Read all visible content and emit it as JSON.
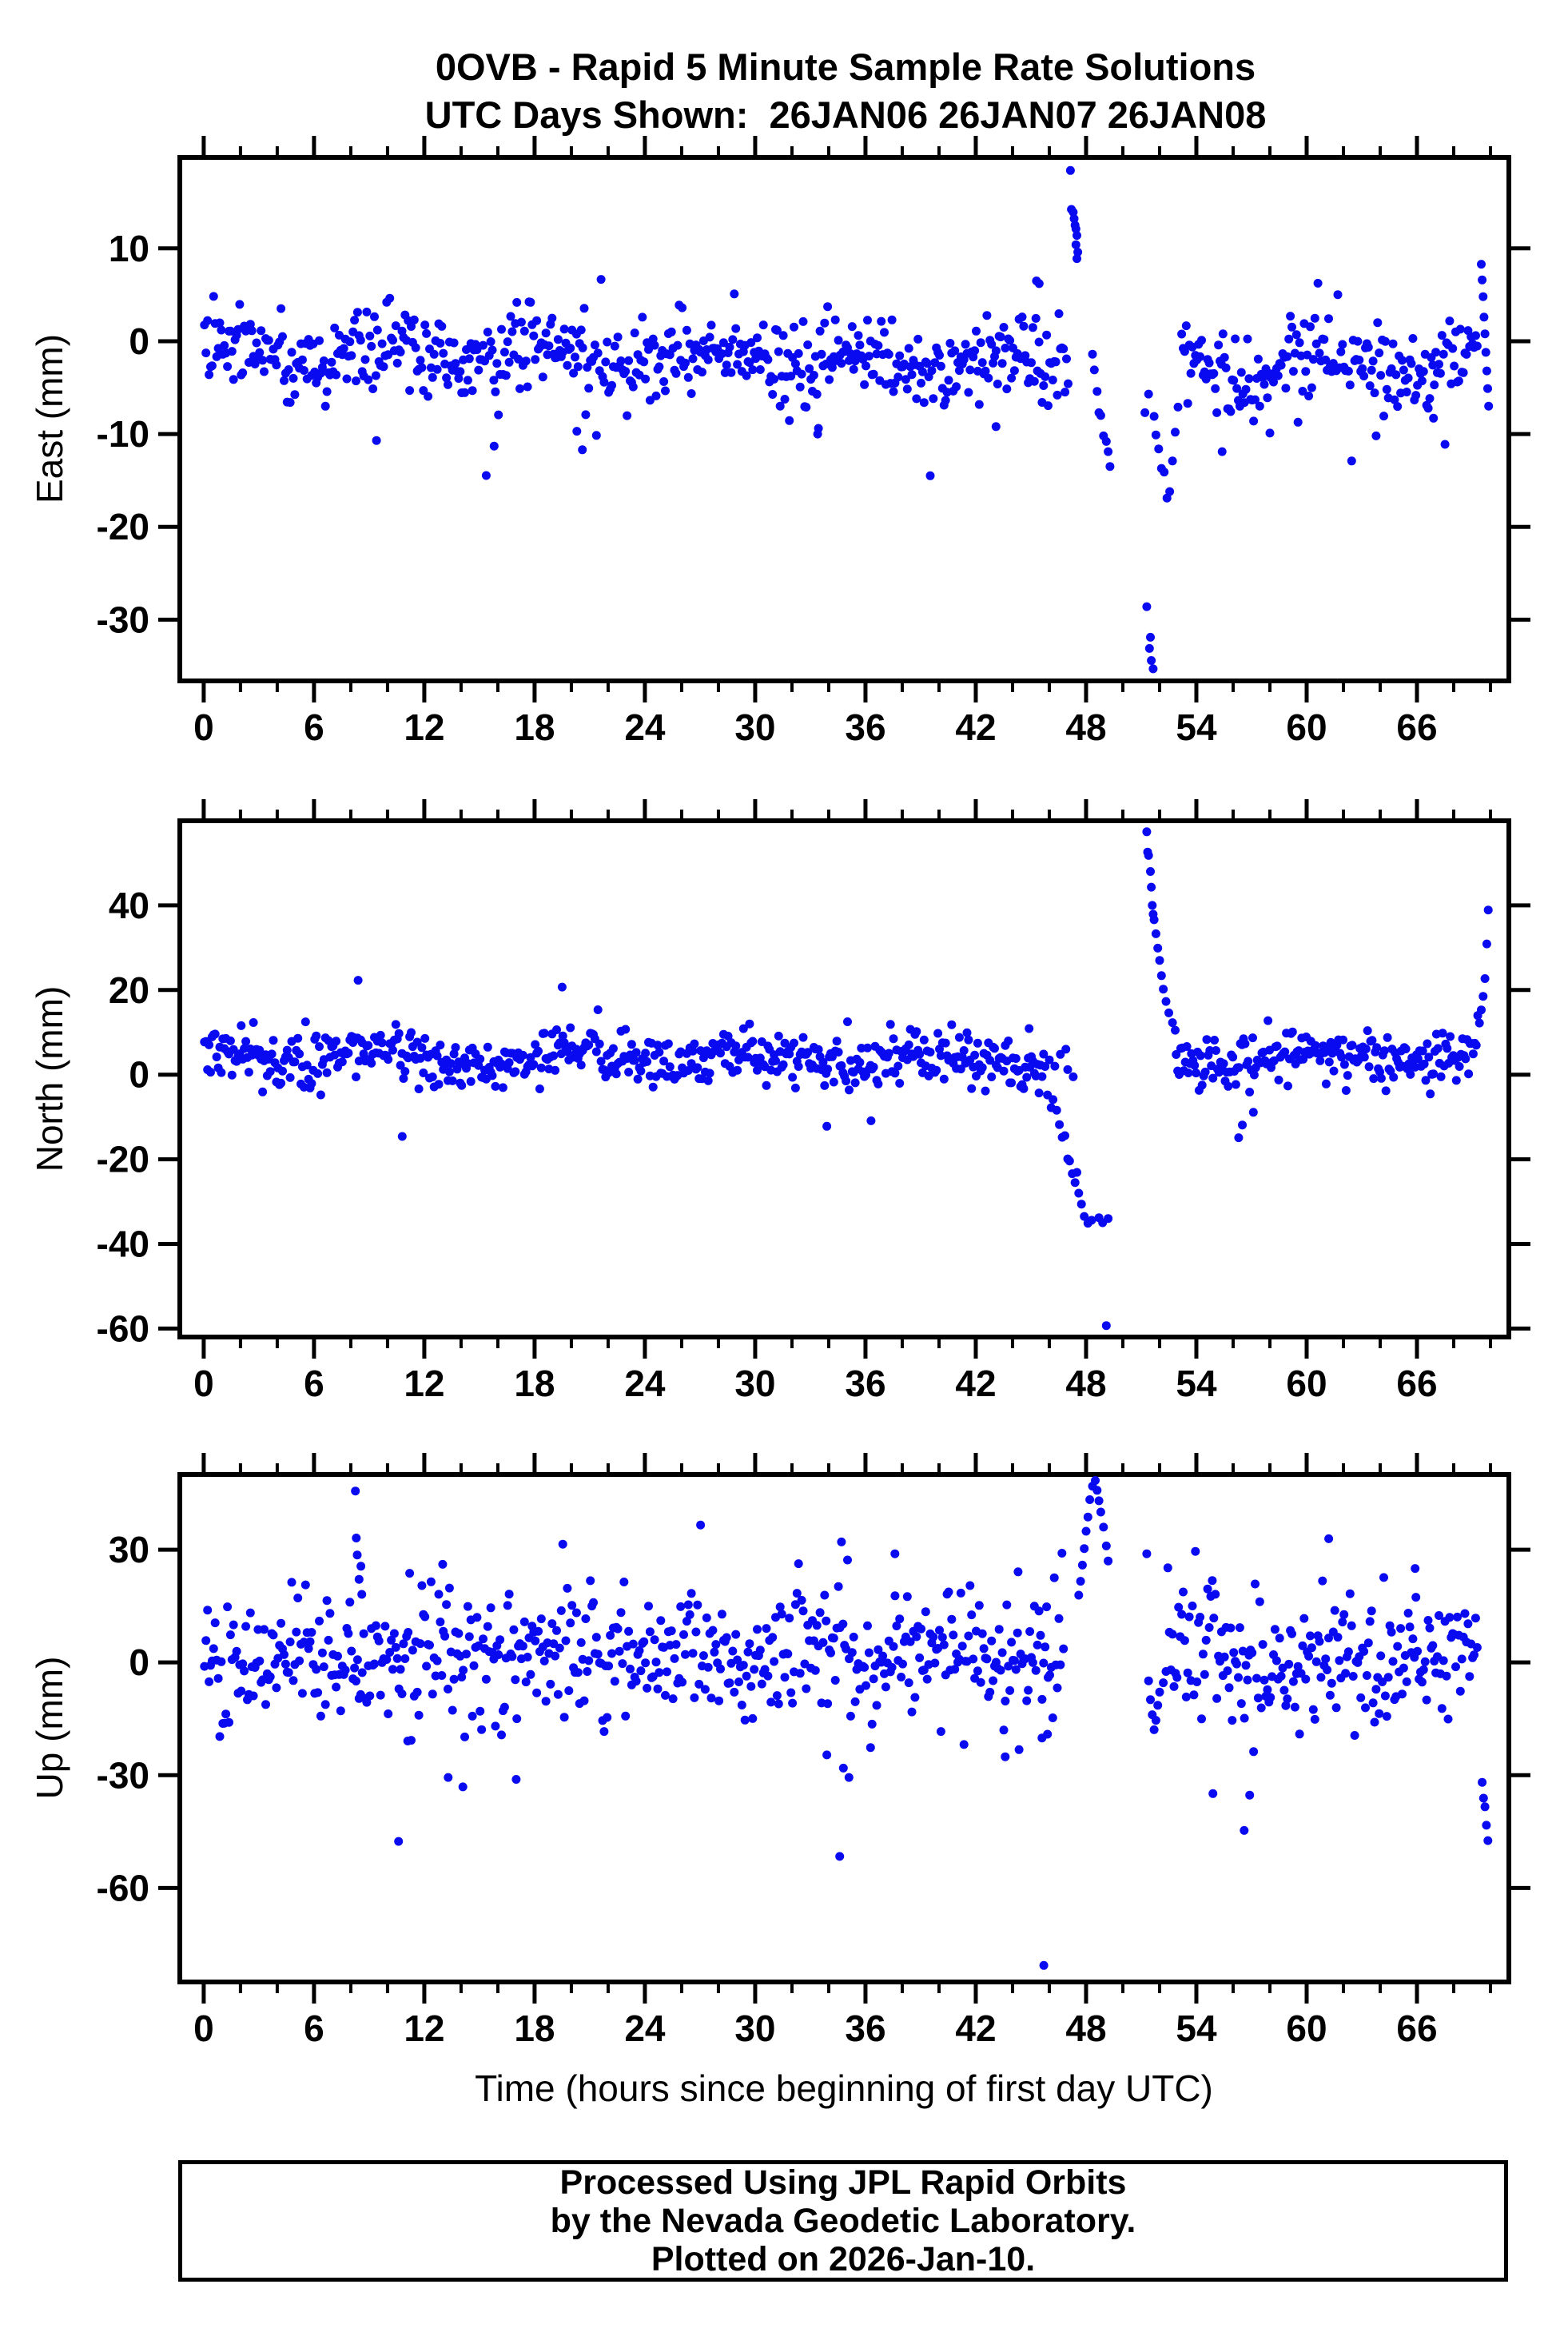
{
  "title": {
    "line1": "0OVB - Rapid 5 Minute Sample Rate Solutions",
    "line2": "UTC Days Shown:  26JAN06 26JAN07 26JAN08"
  },
  "figure": {
    "background": "#ffffff",
    "frame_color": "#000000",
    "marker_color": "#0A0AF0",
    "marker_radius": 5.5,
    "tick_label_color": "#000000"
  },
  "axes": {
    "xlabel": "Time (hours since beginning of first day UTC)",
    "xlim": [
      -1.3,
      71.0
    ],
    "xticks": [
      0,
      6,
      12,
      18,
      24,
      30,
      36,
      42,
      48,
      54,
      60,
      66
    ],
    "x_minor_step": 2,
    "x_units": "hours"
  },
  "footer": {
    "line1": "Processed Using JPL Rapid Orbits",
    "line2": "by the Nevada Geodetic Laboratory.",
    "line3": "Plotted on 2026-Jan-10."
  },
  "chart_data": [
    {
      "type": "scatter",
      "name": "east",
      "ylabel": "East (mm)",
      "units": "mm",
      "ylim": [
        -36.6,
        19.8
      ],
      "yticks": [
        10,
        0,
        -10,
        -20,
        -30
      ],
      "sampling": {
        "step_hours": 0.0833,
        "segments": [
          [
            0.04,
            47.05
          ],
          [
            53.2,
            69.35
          ]
        ]
      },
      "baseline": {
        "mean": -2.4,
        "sigma": 2.1,
        "tail_p": 0.07,
        "tail_mult": 2.2,
        "wander_amp": 1.3,
        "wander_period_h": 8.5,
        "phase": 0.6,
        "seed": 101
      },
      "events": [
        [
          45.3,
          6.5
        ],
        [
          45.45,
          6.2
        ],
        [
          47.15,
          18.4
        ],
        [
          47.2,
          14.2
        ],
        [
          47.3,
          13.9
        ],
        [
          47.35,
          13.2
        ],
        [
          47.4,
          12.5
        ],
        [
          47.45,
          12.1
        ],
        [
          47.5,
          11.4
        ],
        [
          47.45,
          10.4
        ],
        [
          47.55,
          9.6
        ],
        [
          47.5,
          8.9
        ],
        [
          48.35,
          -1.4
        ],
        [
          48.45,
          -3.1
        ],
        [
          48.6,
          -5.4
        ],
        [
          48.7,
          -7.7
        ],
        [
          48.8,
          -8.0
        ],
        [
          48.95,
          -10.2
        ],
        [
          49.1,
          -10.8
        ],
        [
          49.2,
          -11.9
        ],
        [
          49.3,
          -13.5
        ],
        [
          51.3,
          -28.6
        ],
        [
          51.45,
          -33.1
        ],
        [
          51.55,
          -34.4
        ],
        [
          51.65,
          -35.3
        ],
        [
          51.5,
          -31.9
        ],
        [
          51.2,
          -7.7
        ],
        [
          51.4,
          -5.7
        ],
        [
          51.7,
          -8.1
        ],
        [
          51.8,
          -10.1
        ],
        [
          51.95,
          -11.6
        ],
        [
          52.1,
          -13.7
        ],
        [
          52.25,
          -14.1
        ],
        [
          52.4,
          -16.9
        ],
        [
          52.55,
          -16.2
        ],
        [
          52.7,
          -12.9
        ],
        [
          52.85,
          -9.8
        ],
        [
          53.0,
          -7.1
        ],
        [
          69.5,
          8.3
        ],
        [
          69.55,
          6.6
        ],
        [
          69.6,
          4.8
        ],
        [
          69.65,
          2.6
        ],
        [
          69.7,
          0.8
        ],
        [
          69.75,
          -1.2
        ],
        [
          69.8,
          -3.2
        ],
        [
          69.85,
          -5.1
        ],
        [
          69.9,
          -7.0
        ],
        [
          9.4,
          -10.7
        ],
        [
          15.8,
          -11.3
        ],
        [
          20.3,
          -9.7
        ],
        [
          20.6,
          -11.7
        ],
        [
          33.4,
          -10.0
        ],
        [
          43.1,
          -9.2
        ],
        [
          55.4,
          -11.9
        ],
        [
          58.0,
          -9.9
        ],
        [
          66.9,
          -8.3
        ]
      ]
    },
    {
      "type": "scatter",
      "name": "north",
      "ylabel": "North (mm)",
      "units": "mm",
      "ylim": [
        -62,
        60
      ],
      "yticks": [
        40,
        20,
        0,
        -20,
        -40,
        -60
      ],
      "sampling": {
        "step_hours": 0.0833,
        "segments": [
          [
            0.04,
            45.85
          ],
          [
            52.9,
            69.35
          ]
        ]
      },
      "baseline": {
        "mean": 4.4,
        "sigma": 2.9,
        "tail_p": 0.07,
        "tail_mult": 2.0,
        "wander_amp": 1.6,
        "wander_period_h": 10.0,
        "phase": 1.7,
        "seed": 202
      },
      "events": [
        [
          46.0,
          3.5
        ],
        [
          46.3,
          2.0
        ],
        [
          46.6,
          4.8
        ],
        [
          46.9,
          6.0
        ],
        [
          47.0,
          1.2
        ],
        [
          47.3,
          -0.5
        ],
        [
          45.9,
          -4.8
        ],
        [
          46.1,
          -7.8
        ],
        [
          46.2,
          -5.9
        ],
        [
          46.4,
          -8.4
        ],
        [
          46.55,
          -11.8
        ],
        [
          46.7,
          -14.8
        ],
        [
          46.85,
          -14.4
        ],
        [
          47.0,
          -19.9
        ],
        [
          47.1,
          -20.4
        ],
        [
          47.25,
          -23.4
        ],
        [
          47.4,
          -25.5
        ],
        [
          47.5,
          -23.1
        ],
        [
          47.6,
          -28.0
        ],
        [
          47.75,
          -30.6
        ],
        [
          47.9,
          -33.5
        ],
        [
          48.1,
          -35.1
        ],
        [
          48.3,
          -34.4
        ],
        [
          48.7,
          -33.8
        ],
        [
          48.9,
          -35.0
        ],
        [
          49.2,
          -34.0
        ],
        [
          49.1,
          -59.3
        ],
        [
          51.3,
          57.4
        ],
        [
          51.35,
          52.6
        ],
        [
          51.4,
          51.8
        ],
        [
          51.5,
          48.0
        ],
        [
          51.55,
          44.3
        ],
        [
          51.6,
          40.0
        ],
        [
          51.65,
          37.9
        ],
        [
          51.7,
          36.6
        ],
        [
          51.8,
          33.3
        ],
        [
          51.9,
          29.9
        ],
        [
          52.0,
          27.0
        ],
        [
          52.1,
          23.4
        ],
        [
          52.2,
          20.2
        ],
        [
          52.35,
          17.3
        ],
        [
          52.5,
          14.6
        ],
        [
          52.7,
          12.3
        ],
        [
          52.85,
          10.5
        ],
        [
          8.4,
          22.3
        ],
        [
          10.8,
          -14.6
        ],
        [
          19.5,
          20.7
        ],
        [
          33.9,
          -12.2
        ],
        [
          36.3,
          -10.9
        ],
        [
          44.9,
          10.9
        ],
        [
          56.3,
          -14.9
        ],
        [
          56.5,
          -11.9
        ],
        [
          57.1,
          -8.9
        ],
        [
          69.4,
          12.2
        ],
        [
          69.5,
          15.3
        ],
        [
          69.6,
          18.5
        ],
        [
          69.7,
          22.7
        ],
        [
          69.8,
          30.9
        ],
        [
          69.88,
          38.9
        ]
      ]
    },
    {
      "type": "scatter",
      "name": "up",
      "ylabel": "Up (mm)",
      "units": "mm",
      "ylim": [
        -85,
        50
      ],
      "yticks": [
        30,
        0,
        -30,
        -60
      ],
      "sampling": {
        "step_hours": 0.0833,
        "segments": [
          [
            0.04,
            46.85
          ],
          [
            52.45,
            69.3
          ]
        ]
      },
      "baseline": {
        "mean": 0.5,
        "sigma": 8.0,
        "tail_p": 0.08,
        "tail_mult": 1.8,
        "wander_amp": 3.0,
        "wander_period_h": 7.0,
        "phase": 2.9,
        "seed": 303
      },
      "events": [
        [
          8.25,
          45.6
        ],
        [
          8.3,
          33.1
        ],
        [
          8.35,
          28.6
        ],
        [
          8.45,
          22.1
        ],
        [
          8.55,
          25.6
        ],
        [
          8.6,
          18.1
        ],
        [
          10.6,
          -47.6
        ],
        [
          11.1,
          -20.9
        ],
        [
          13.0,
          26.1
        ],
        [
          13.3,
          -30.6
        ],
        [
          14.1,
          -33.1
        ],
        [
          17.0,
          -31.1
        ],
        [
          33.9,
          -24.6
        ],
        [
          34.6,
          -51.6
        ],
        [
          34.8,
          -28.1
        ],
        [
          35.1,
          -30.6
        ],
        [
          37.6,
          28.9
        ],
        [
          43.6,
          -25.1
        ],
        [
          44.3,
          24.1
        ],
        [
          45.6,
          -20.1
        ],
        [
          45.7,
          -80.6
        ],
        [
          45.9,
          -19.1
        ],
        [
          47.6,
          17.9
        ],
        [
          47.7,
          21.6
        ],
        [
          47.8,
          25.9
        ],
        [
          47.9,
          30.3
        ],
        [
          48.0,
          34.9
        ],
        [
          48.1,
          38.7
        ],
        [
          48.2,
          43.3
        ],
        [
          48.35,
          46.9
        ],
        [
          48.5,
          48.4
        ],
        [
          48.6,
          45.8
        ],
        [
          48.7,
          43.0
        ],
        [
          48.8,
          40.0
        ],
        [
          48.95,
          36.0
        ],
        [
          49.1,
          31.0
        ],
        [
          49.2,
          27.0
        ],
        [
          51.3,
          28.9
        ],
        [
          51.4,
          -4.9
        ],
        [
          51.5,
          -9.9
        ],
        [
          51.6,
          -13.9
        ],
        [
          51.7,
          -17.9
        ],
        [
          51.8,
          -15.4
        ],
        [
          51.9,
          -11.4
        ],
        [
          52.0,
          -7.9
        ],
        [
          52.2,
          -5.4
        ],
        [
          52.35,
          -2.4
        ],
        [
          54.9,
          -34.9
        ],
        [
          56.6,
          -44.7
        ],
        [
          56.9,
          -35.3
        ],
        [
          61.2,
          32.9
        ],
        [
          65.9,
          25.0
        ],
        [
          69.55,
          -31.9
        ],
        [
          69.62,
          -36.1
        ],
        [
          69.7,
          -38.4
        ],
        [
          69.78,
          -43.3
        ],
        [
          69.86,
          -47.4
        ]
      ]
    }
  ]
}
